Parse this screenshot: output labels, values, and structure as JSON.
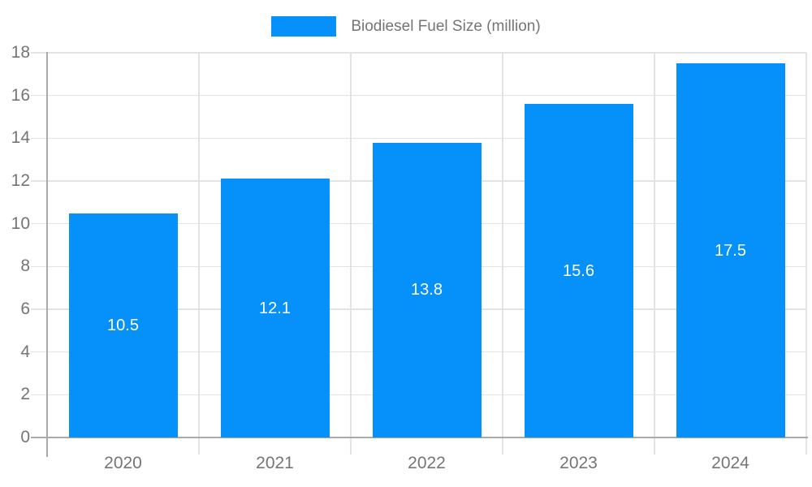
{
  "chart_data": {
    "type": "bar",
    "title": "",
    "legend": "Biodiesel Fuel Size (million)",
    "legend_position": "top-center",
    "categories": [
      "2020",
      "2021",
      "2022",
      "2023",
      "2024"
    ],
    "series": [
      {
        "name": "Biodiesel Fuel Size (million)",
        "values": [
          10.5,
          12.1,
          13.8,
          15.6,
          17.5
        ]
      }
    ],
    "bar_value_labels": [
      "10.5",
      "12.1",
      "13.8",
      "15.6",
      "17.5"
    ],
    "xlabel": "",
    "ylabel": "",
    "ylim": [
      0,
      18
    ],
    "yticks": [
      0,
      2,
      4,
      6,
      8,
      10,
      12,
      14,
      16,
      18
    ],
    "grid": true,
    "colors": {
      "bar": "#0590FA",
      "gridline": "#e3e3e3",
      "axis": "#aaaaaa",
      "tick_label_text": "#757575",
      "legend_text": "#757575",
      "bar_value_text": "#ffffff",
      "background": "#ffffff"
    }
  }
}
